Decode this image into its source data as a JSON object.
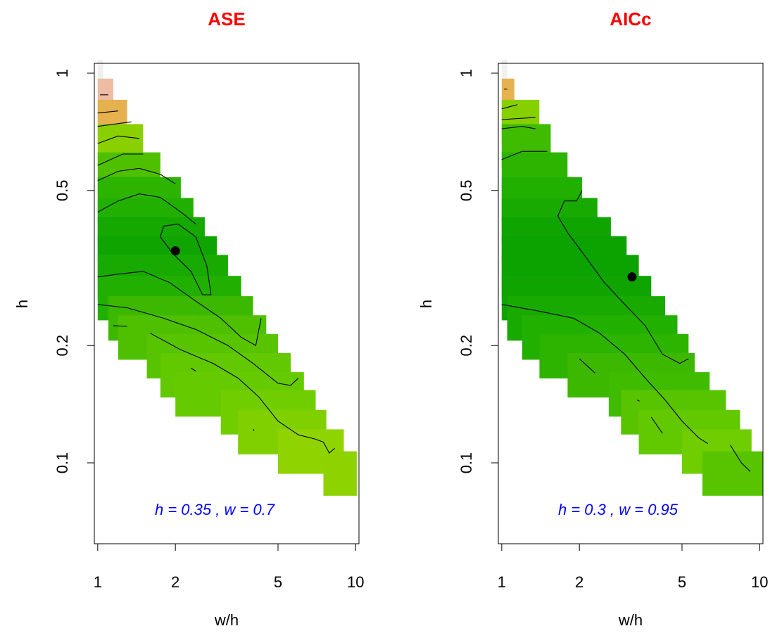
{
  "colors": {
    "title": "#ff0000",
    "annotation": "#0000ff",
    "axis": "#000000",
    "optimum_point": "#000000",
    "contour": "#000000"
  },
  "chart_data": [
    {
      "type": "heatmap",
      "title": "ASE",
      "xlabel": "w/h",
      "ylabel": "h",
      "x_scale": "log",
      "y_scale": "log",
      "xlim": [
        0.97,
        10.3
      ],
      "ylim": [
        0.062,
        1.06
      ],
      "x_ticks": [
        {
          "value": 1,
          "label": "1"
        },
        {
          "value": 2,
          "label": "2"
        },
        {
          "value": 5,
          "label": "5"
        },
        {
          "value": 10,
          "label": "10"
        }
      ],
      "y_ticks": [
        {
          "value": 0.1,
          "label": "0.1"
        },
        {
          "value": 0.2,
          "label": "0.2"
        },
        {
          "value": 0.5,
          "label": "0.5"
        },
        {
          "value": 1,
          "label": "1"
        }
      ],
      "optimum": {
        "x": 2.0,
        "y": 0.35
      },
      "annotation": {
        "prefix_h": "h = ",
        "h": "0.35",
        "sep": " , ",
        "prefix_w": "w = ",
        "w": "0.7"
      },
      "grid": false,
      "legend": "none",
      "cells": [
        {
          "h": 0.95,
          "w_min": 1.0,
          "w_max": 1.05,
          "color": "#f0f0f0"
        },
        {
          "h": 0.85,
          "w_min": 1.0,
          "w_max": 1.15,
          "color": "#eebba3"
        },
        {
          "h": 0.75,
          "w_min": 1.0,
          "w_max": 1.3,
          "color": "#e6b14f"
        },
        {
          "h": 0.65,
          "w_min": 1.0,
          "w_max": 1.5,
          "color": "#8ad000"
        },
        {
          "h": 0.55,
          "w_min": 1.0,
          "w_max": 1.75,
          "color": "#4ec000"
        },
        {
          "h": 0.475,
          "w_min": 1.0,
          "w_max": 2.1,
          "color": "#2cb400"
        },
        {
          "h": 0.42,
          "w_min": 1.0,
          "w_max": 2.35,
          "color": "#22b000"
        },
        {
          "h": 0.375,
          "w_min": 1.0,
          "w_max": 2.6,
          "color": "#14a800"
        },
        {
          "h": 0.335,
          "w_min": 1.0,
          "w_max": 2.9,
          "color": "#10a400"
        },
        {
          "h": 0.3,
          "w_min": 1.0,
          "w_max": 3.2,
          "color": "#18aa00"
        },
        {
          "h": 0.265,
          "w_min": 1.0,
          "w_max": 3.6,
          "color": "#22b000"
        },
        {
          "h": 0.235,
          "w_min": 1.1,
          "w_max": 4.0,
          "color": "#3cb800"
        },
        {
          "h": 0.21,
          "w_min": 1.2,
          "w_max": 4.5,
          "color": "#4ec000"
        },
        {
          "h": 0.188,
          "w_min": 1.55,
          "w_max": 5.0,
          "color": "#58c400"
        },
        {
          "h": 0.168,
          "w_min": 1.75,
          "w_max": 5.6,
          "color": "#62c800"
        },
        {
          "h": 0.15,
          "w_min": 2.0,
          "w_max": 6.3,
          "color": "#66ca00"
        },
        {
          "h": 0.135,
          "w_min": 3.0,
          "w_max": 7.0,
          "color": "#70ce00"
        },
        {
          "h": 0.12,
          "w_min": 3.5,
          "w_max": 7.7,
          "color": "#80d000"
        },
        {
          "h": 0.107,
          "w_min": 5.0,
          "w_max": 9.0,
          "color": "#8fd400"
        },
        {
          "h": 0.094,
          "w_min": 7.5,
          "w_max": 10.1,
          "color": "#8ed200"
        }
      ],
      "contours": [
        [
          [
            1.0,
            0.44
          ],
          [
            1.2,
            0.47
          ],
          [
            1.45,
            0.49
          ],
          [
            1.75,
            0.48
          ],
          [
            2.1,
            0.44
          ],
          [
            2.4,
            0.41
          ]
        ],
        [
          [
            1.0,
            0.53
          ],
          [
            1.2,
            0.56
          ],
          [
            1.45,
            0.57
          ],
          [
            1.75,
            0.55
          ],
          [
            2.0,
            0.52
          ]
        ],
        [
          [
            1.0,
            0.58
          ],
          [
            1.25,
            0.62
          ],
          [
            1.5,
            0.62
          ]
        ],
        [
          [
            1.0,
            0.66
          ],
          [
            1.2,
            0.69
          ],
          [
            1.45,
            0.68
          ]
        ],
        [
          [
            1.0,
            0.73
          ],
          [
            1.35,
            0.75
          ]
        ],
        [
          [
            1.0,
            0.79
          ],
          [
            1.2,
            0.8
          ]
        ],
        [
          [
            1.02,
            0.88
          ],
          [
            1.1,
            0.88
          ]
        ],
        [
          [
            1.75,
            0.38
          ],
          [
            1.8,
            0.405
          ],
          [
            2.05,
            0.41
          ],
          [
            2.4,
            0.38
          ],
          [
            2.65,
            0.32
          ],
          [
            2.75,
            0.27
          ],
          [
            2.55,
            0.27
          ],
          [
            2.3,
            0.31
          ],
          [
            1.95,
            0.345
          ],
          [
            1.75,
            0.38
          ]
        ],
        [
          [
            1.0,
            0.3
          ],
          [
            1.2,
            0.305
          ],
          [
            1.5,
            0.31
          ],
          [
            1.9,
            0.29
          ],
          [
            2.4,
            0.26
          ],
          [
            3.0,
            0.235
          ],
          [
            3.6,
            0.21
          ],
          [
            4.1,
            0.2
          ],
          [
            4.3,
            0.235
          ]
        ],
        [
          [
            1.0,
            0.255
          ],
          [
            1.3,
            0.25
          ],
          [
            1.8,
            0.235
          ],
          [
            2.4,
            0.22
          ],
          [
            3.2,
            0.2
          ],
          [
            4.0,
            0.18
          ],
          [
            5.0,
            0.16
          ],
          [
            5.6,
            0.158
          ],
          [
            6.0,
            0.165
          ]
        ],
        [
          [
            1.15,
            0.225
          ],
          [
            1.3,
            0.224
          ]
        ],
        [
          [
            1.6,
            0.215
          ],
          [
            2.1,
            0.195
          ],
          [
            2.8,
            0.18
          ],
          [
            3.5,
            0.165
          ],
          [
            4.2,
            0.148
          ],
          [
            5.0,
            0.128
          ],
          [
            6.0,
            0.118
          ],
          [
            7.0,
            0.115
          ],
          [
            7.5,
            0.113
          ],
          [
            7.9,
            0.106
          ],
          [
            8.3,
            0.109
          ]
        ],
        [
          [
            2.3,
            0.175
          ],
          [
            2.4,
            0.172
          ]
        ],
        [
          [
            4.0,
            0.122
          ],
          [
            4.05,
            0.121
          ]
        ]
      ]
    },
    {
      "type": "heatmap",
      "title": "AICc",
      "xlabel": "w/h",
      "ylabel": "h",
      "x_scale": "log",
      "y_scale": "log",
      "xlim": [
        0.97,
        10.3
      ],
      "ylim": [
        0.062,
        1.06
      ],
      "x_ticks": [
        {
          "value": 1,
          "label": "1"
        },
        {
          "value": 2,
          "label": "2"
        },
        {
          "value": 5,
          "label": "5"
        },
        {
          "value": 10,
          "label": "10"
        }
      ],
      "y_ticks": [
        {
          "value": 0.1,
          "label": "0.1"
        },
        {
          "value": 0.2,
          "label": "0.2"
        },
        {
          "value": 0.5,
          "label": "0.5"
        },
        {
          "value": 1,
          "label": "1"
        }
      ],
      "optimum": {
        "x": 3.2,
        "y": 0.3
      },
      "annotation": {
        "prefix_h": "h = ",
        "h": "0.3",
        "sep": " , ",
        "prefix_w": "w = ",
        "w": "0.95"
      },
      "grid": false,
      "legend": "none",
      "cells": [
        {
          "h": 0.95,
          "w_min": 1.0,
          "w_max": 1.05,
          "color": "#f0f0f0"
        },
        {
          "h": 0.85,
          "w_min": 1.0,
          "w_max": 1.12,
          "color": "#e6b14f"
        },
        {
          "h": 0.75,
          "w_min": 1.0,
          "w_max": 1.4,
          "color": "#86d000"
        },
        {
          "h": 0.65,
          "w_min": 1.0,
          "w_max": 1.55,
          "color": "#40bc00"
        },
        {
          "h": 0.55,
          "w_min": 1.0,
          "w_max": 1.8,
          "color": "#2cb400"
        },
        {
          "h": 0.475,
          "w_min": 1.0,
          "w_max": 2.05,
          "color": "#22b000"
        },
        {
          "h": 0.42,
          "w_min": 1.0,
          "w_max": 2.35,
          "color": "#18aa00"
        },
        {
          "h": 0.375,
          "w_min": 1.0,
          "w_max": 2.65,
          "color": "#10a400"
        },
        {
          "h": 0.335,
          "w_min": 1.0,
          "w_max": 3.05,
          "color": "#0ca200"
        },
        {
          "h": 0.3,
          "w_min": 1.0,
          "w_max": 3.4,
          "color": "#0ca200"
        },
        {
          "h": 0.265,
          "w_min": 1.0,
          "w_max": 3.8,
          "color": "#10a400"
        },
        {
          "h": 0.235,
          "w_min": 1.05,
          "w_max": 4.3,
          "color": "#18aa00"
        },
        {
          "h": 0.21,
          "w_min": 1.2,
          "w_max": 4.8,
          "color": "#22b000"
        },
        {
          "h": 0.188,
          "w_min": 1.4,
          "w_max": 5.3,
          "color": "#2cb400"
        },
        {
          "h": 0.168,
          "w_min": 1.8,
          "w_max": 5.6,
          "color": "#3cb800"
        },
        {
          "h": 0.15,
          "w_min": 2.6,
          "w_max": 6.4,
          "color": "#40bc00"
        },
        {
          "h": 0.135,
          "w_min": 2.9,
          "w_max": 7.4,
          "color": "#58c400"
        },
        {
          "h": 0.12,
          "w_min": 3.4,
          "w_max": 8.4,
          "color": "#62c800"
        },
        {
          "h": 0.107,
          "w_min": 5.0,
          "w_max": 9.3,
          "color": "#70ce00"
        },
        {
          "h": 0.094,
          "w_min": 6.0,
          "w_max": 10.3,
          "color": "#58c400"
        }
      ],
      "contours": [
        [
          [
            1.02,
            0.91
          ],
          [
            1.05,
            0.91
          ]
        ],
        [
          [
            1.0,
            0.81
          ],
          [
            1.15,
            0.83
          ]
        ],
        [
          [
            1.0,
            0.76
          ],
          [
            1.35,
            0.77
          ]
        ],
        [
          [
            1.0,
            0.72
          ],
          [
            1.2,
            0.73
          ],
          [
            1.35,
            0.72
          ]
        ],
        [
          [
            1.0,
            0.6
          ],
          [
            1.2,
            0.63
          ],
          [
            1.5,
            0.63
          ]
        ],
        [
          [
            1.65,
            0.43
          ],
          [
            1.75,
            0.47
          ],
          [
            1.95,
            0.47
          ],
          [
            2.05,
            0.5
          ]
        ],
        [
          [
            1.65,
            0.43
          ],
          [
            1.8,
            0.39
          ],
          [
            2.1,
            0.34
          ],
          [
            2.5,
            0.29
          ],
          [
            3.0,
            0.255
          ],
          [
            3.6,
            0.225
          ],
          [
            4.2,
            0.19
          ],
          [
            4.9,
            0.18
          ],
          [
            5.3,
            0.185
          ]
        ],
        [
          [
            1.0,
            0.255
          ],
          [
            1.4,
            0.245
          ],
          [
            1.9,
            0.235
          ],
          [
            2.4,
            0.215
          ],
          [
            3.0,
            0.19
          ],
          [
            3.6,
            0.165
          ],
          [
            4.3,
            0.145
          ],
          [
            5.0,
            0.128
          ],
          [
            5.8,
            0.116
          ],
          [
            6.3,
            0.112
          ]
        ],
        [
          [
            2.0,
            0.185
          ],
          [
            2.3,
            0.17
          ]
        ],
        [
          [
            3.35,
            0.145
          ],
          [
            3.42,
            0.144
          ]
        ],
        [
          [
            3.8,
            0.131
          ],
          [
            4.2,
            0.119
          ]
        ],
        [
          [
            7.7,
            0.111
          ],
          [
            8.5,
            0.1
          ],
          [
            9.2,
            0.095
          ]
        ]
      ]
    }
  ]
}
